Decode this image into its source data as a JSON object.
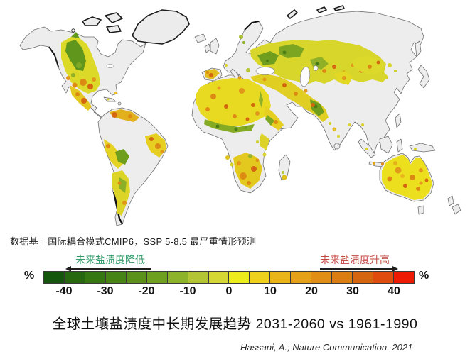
{
  "map": {
    "name": "global-soil-salinity-trend-map",
    "land_color": "#ededed",
    "coast_color": "#6f6f6f"
  },
  "subtitle": "数据基于国际耦合模式CMIP6，SSP 5-8.5 最严重情形预测",
  "legend": {
    "left_label": "未来盐渍度降低",
    "right_label": "未来盐渍度升高",
    "left_label_color": "#2f9a68",
    "right_label_color": "#c44a46",
    "unit": "%",
    "min": -45,
    "max": 45,
    "ticks": [
      "-40",
      "-30",
      "-20",
      "-10",
      "0",
      "10",
      "20",
      "30",
      "40"
    ],
    "segment_colors": [
      "#14570c",
      "#25680f",
      "#357713",
      "#478417",
      "#5a921b",
      "#6da01f",
      "#8db32a",
      "#b3c535",
      "#d5d834",
      "#efec1e",
      "#eed11d",
      "#eab519",
      "#e5a117",
      "#e18e15",
      "#dc7d13",
      "#d5660f",
      "#e04c0d",
      "#ee1a04"
    ]
  },
  "title": "全球土壤盐渍度中长期发展趋势 2031-2060 vs 1961-1990",
  "citation": "Hassani, A.; Nature Communication. 2021"
}
